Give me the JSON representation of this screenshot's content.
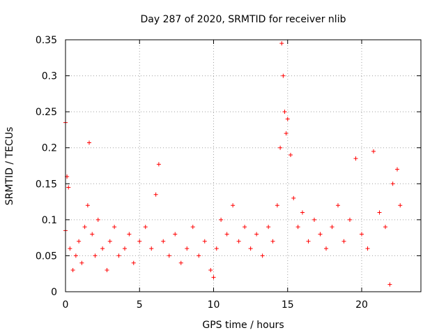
{
  "chart_data": {
    "type": "scatter",
    "title": "Day 287 of 2020, SRMTID for receiver nlib",
    "xlabel": "GPS time / hours",
    "ylabel": "SRMTID / TECUs",
    "xlim": [
      0,
      24
    ],
    "ylim": [
      0,
      0.35
    ],
    "grid": true,
    "marker": "+",
    "marker_color": "#ff0000",
    "x_ticks": [
      0,
      5,
      10,
      15,
      20
    ],
    "x_tick_labels": [
      "0",
      "5",
      "10",
      "15",
      "20"
    ],
    "y_ticks": [
      0,
      0.05,
      0.1,
      0.15,
      0.2,
      0.25,
      0.3,
      0.35
    ],
    "y_tick_labels": [
      "0",
      "0.05",
      "0.1",
      "0.15",
      "0.2",
      "0.25",
      "0.3",
      "0.35"
    ],
    "series": [
      {
        "name": "SRMTID",
        "x": [
          0.0,
          0.0,
          0.1,
          0.2,
          0.3,
          0.5,
          0.7,
          0.9,
          1.1,
          1.3,
          1.5,
          1.6,
          1.8,
          2.0,
          2.2,
          2.5,
          2.8,
          3.0,
          3.3,
          3.6,
          4.0,
          4.3,
          4.6,
          5.0,
          5.4,
          5.8,
          6.1,
          6.3,
          6.6,
          7.0,
          7.4,
          7.8,
          8.2,
          8.6,
          9.0,
          9.4,
          9.8,
          10.0,
          10.2,
          10.5,
          10.9,
          11.3,
          11.7,
          12.1,
          12.5,
          12.9,
          13.3,
          13.7,
          14.0,
          14.3,
          14.5,
          14.6,
          14.7,
          14.8,
          14.9,
          15.0,
          15.2,
          15.4,
          15.7,
          16.0,
          16.4,
          16.8,
          17.2,
          17.6,
          18.0,
          18.4,
          18.8,
          19.2,
          19.6,
          20.0,
          20.4,
          20.8,
          21.2,
          21.6,
          21.9,
          22.1,
          22.4,
          22.6
        ],
        "y": [
          0.235,
          0.085,
          0.16,
          0.145,
          0.06,
          0.03,
          0.05,
          0.07,
          0.04,
          0.09,
          0.12,
          0.207,
          0.08,
          0.05,
          0.1,
          0.06,
          0.03,
          0.07,
          0.09,
          0.05,
          0.06,
          0.08,
          0.04,
          0.07,
          0.09,
          0.06,
          0.135,
          0.177,
          0.07,
          0.05,
          0.08,
          0.04,
          0.06,
          0.09,
          0.05,
          0.07,
          0.03,
          0.02,
          0.06,
          0.1,
          0.08,
          0.12,
          0.07,
          0.09,
          0.06,
          0.08,
          0.05,
          0.09,
          0.07,
          0.12,
          0.2,
          0.345,
          0.3,
          0.25,
          0.22,
          0.24,
          0.19,
          0.13,
          0.09,
          0.11,
          0.07,
          0.1,
          0.08,
          0.06,
          0.09,
          0.12,
          0.07,
          0.1,
          0.185,
          0.08,
          0.06,
          0.195,
          0.11,
          0.09,
          0.01,
          0.15,
          0.17,
          0.12
        ]
      }
    ]
  }
}
